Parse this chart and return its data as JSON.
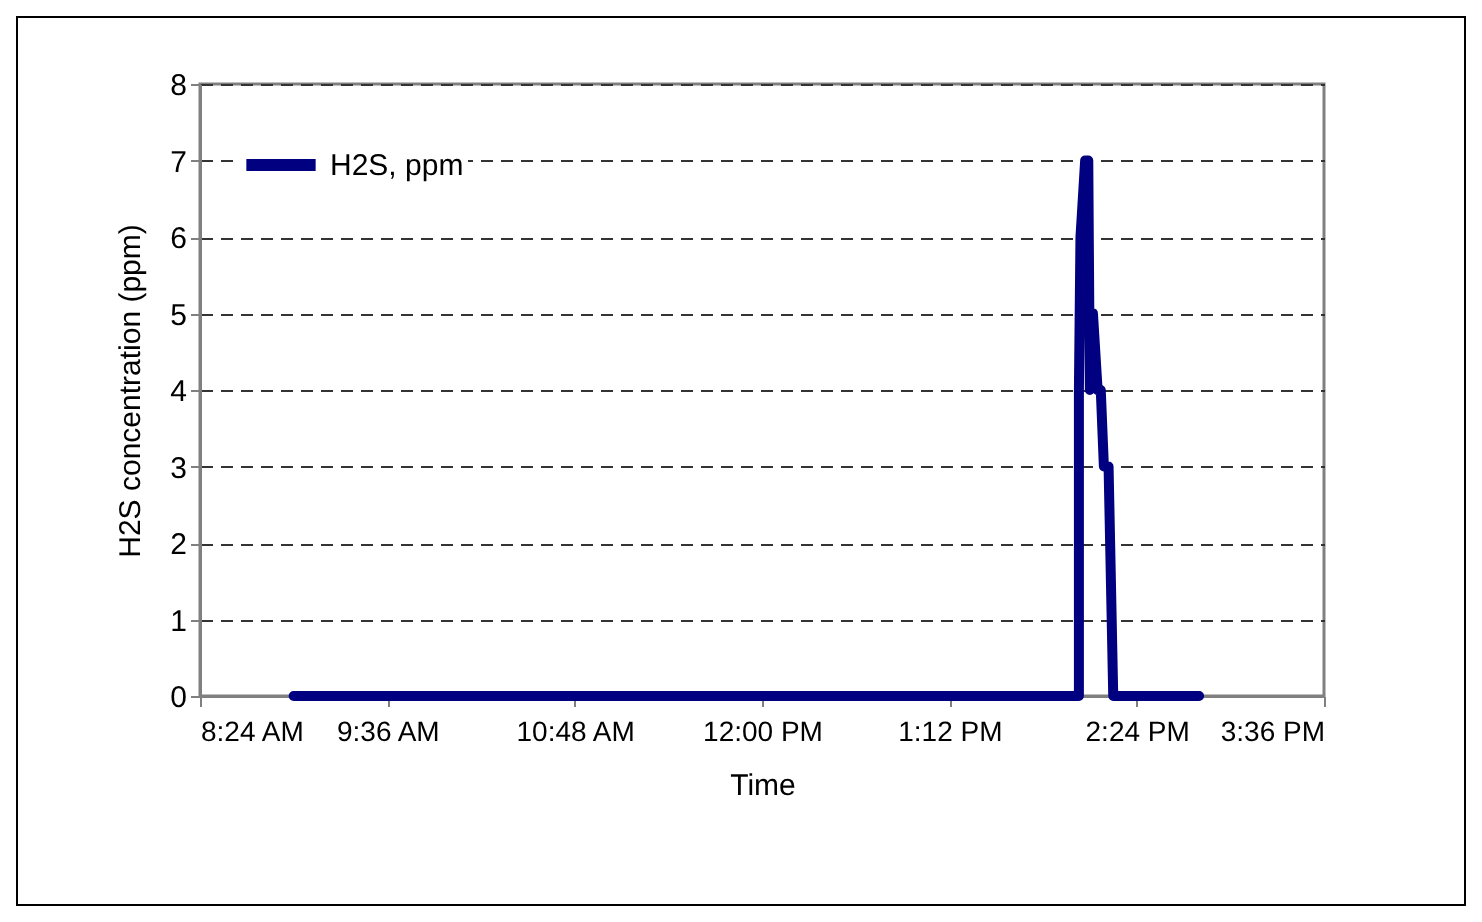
{
  "chart_data": {
    "type": "line",
    "xlabel": "Time",
    "ylabel": "H2S concentration (ppm)",
    "x": [
      9.0,
      14.03,
      14.03,
      14.04,
      14.07,
      14.09,
      14.1,
      14.12,
      14.15,
      14.17,
      14.19,
      14.22,
      14.23,
      14.25,
      14.8
    ],
    "series": [
      {
        "name": "H2S, ppm",
        "color": "#000080",
        "values": [
          0,
          0,
          4,
          6,
          7,
          7,
          4,
          5,
          4,
          4,
          3,
          3,
          2,
          0,
          0
        ]
      }
    ],
    "xlim": [
      8.4,
      15.6
    ],
    "xticks": [
      {
        "value": 8.4,
        "label": "8:24 AM"
      },
      {
        "value": 9.6,
        "label": "9:36 AM"
      },
      {
        "value": 10.8,
        "label": "10:48 AM"
      },
      {
        "value": 12,
        "label": "12:00 PM"
      },
      {
        "value": 13.2,
        "label": "1:12 PM"
      },
      {
        "value": 14.4,
        "label": "2:24 PM"
      },
      {
        "value": 15.6,
        "label": "3:36 PM"
      }
    ],
    "ylim": [
      0,
      8
    ],
    "yticks": [
      0,
      1,
      2,
      3,
      4,
      5,
      6,
      7,
      8
    ],
    "grid": "y",
    "legend": "top left",
    "line_style": "solid",
    "marker": "none"
  }
}
